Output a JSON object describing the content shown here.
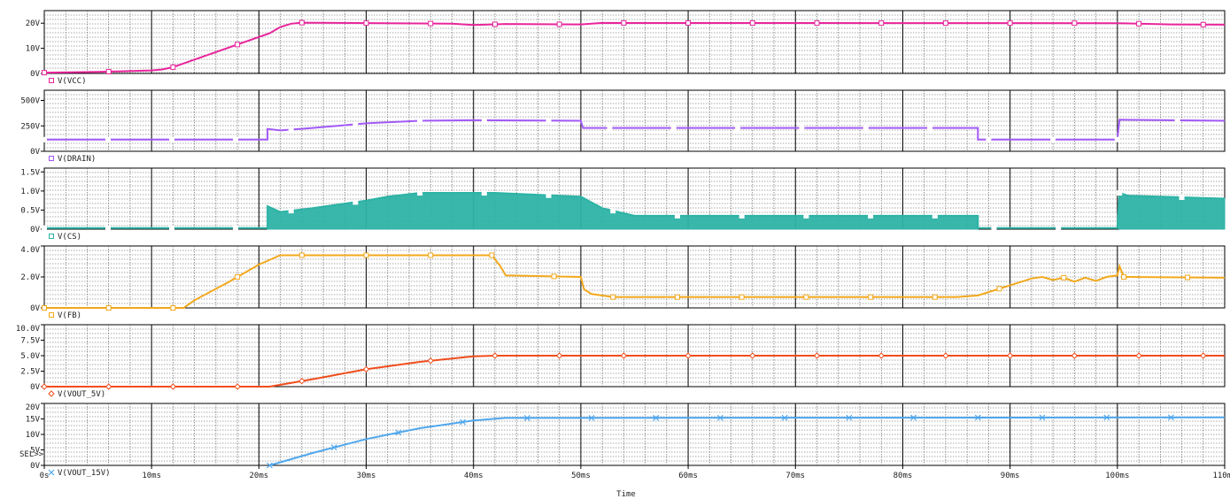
{
  "chart_data": {
    "type": "line",
    "x_axis": {
      "label": "Time",
      "unit": "ms",
      "range": [
        0,
        110
      ],
      "tick_labels": [
        "0s",
        "10ms",
        "20ms",
        "30ms",
        "40ms",
        "50ms",
        "60ms",
        "70ms",
        "80ms",
        "90ms",
        "100ms",
        "110ms"
      ]
    },
    "panels": [
      {
        "trace": "V(VCC)",
        "color": "#e8259c",
        "marker": "square",
        "fill": false,
        "y_range": [
          0,
          25
        ],
        "tick_values": [
          0,
          10,
          20
        ],
        "tick_labels": [
          "0V",
          "10V",
          "20V"
        ],
        "points": [
          [
            0,
            0.3
          ],
          [
            5,
            0.6
          ],
          [
            10,
            1.2
          ],
          [
            11,
            1.6
          ],
          [
            12,
            2.5
          ],
          [
            15,
            7
          ],
          [
            18,
            11.5
          ],
          [
            21,
            16
          ],
          [
            22,
            18.5
          ],
          [
            23,
            19.8
          ],
          [
            24,
            20.2
          ],
          [
            38,
            19.8
          ],
          [
            40,
            19.3
          ],
          [
            43,
            19.7
          ],
          [
            50,
            19.5
          ],
          [
            52,
            20.1
          ],
          [
            100,
            20
          ],
          [
            105,
            19.5
          ],
          [
            110,
            19.4
          ]
        ]
      },
      {
        "trace": "V(DRAIN)",
        "color": "#a259f7",
        "marker": "square",
        "fill": true,
        "y_range": [
          0,
          600
        ],
        "tick_values": [
          0,
          250,
          500
        ],
        "tick_labels": [
          "0V",
          "250V",
          "500V"
        ],
        "points": [
          [
            0,
            115
          ],
          [
            20.8,
            115
          ],
          [
            20.8,
            220
          ],
          [
            22,
            205
          ],
          [
            25,
            230
          ],
          [
            30,
            275
          ],
          [
            35,
            300
          ],
          [
            40,
            305
          ],
          [
            50,
            300
          ],
          [
            50.2,
            230
          ],
          [
            87,
            230
          ],
          [
            87,
            115
          ],
          [
            100,
            115
          ],
          [
            100.2,
            310
          ],
          [
            110,
            300
          ]
        ]
      },
      {
        "trace": "V(CS)",
        "color": "#2db3a5",
        "marker": "square",
        "fill": true,
        "y_range": [
          0,
          1.6
        ],
        "tick_values": [
          0,
          0.5,
          1.0,
          1.5
        ],
        "tick_labels": [
          "0V",
          "0.5V",
          "1.0V",
          "1.5V"
        ],
        "points": [
          [
            0,
            0.03
          ],
          [
            20.8,
            0.03
          ],
          [
            20.8,
            0.6
          ],
          [
            22,
            0.45
          ],
          [
            25,
            0.55
          ],
          [
            30,
            0.75
          ],
          [
            32,
            0.85
          ],
          [
            35,
            0.95
          ],
          [
            42,
            0.95
          ],
          [
            50,
            0.85
          ],
          [
            52,
            0.55
          ],
          [
            55,
            0.35
          ],
          [
            87,
            0.35
          ],
          [
            87,
            0.03
          ],
          [
            100,
            0.03
          ],
          [
            100.2,
            0.95
          ],
          [
            101,
            0.88
          ],
          [
            110,
            0.8
          ]
        ]
      },
      {
        "trace": "V(FB)",
        "color": "#f2a81d",
        "marker": "square",
        "fill": false,
        "y_range": [
          0,
          4
        ],
        "tick_values": [
          0,
          2,
          4
        ],
        "tick_labels": [
          "0V",
          "2.0V",
          "4.0V"
        ],
        "points": [
          [
            0,
            0
          ],
          [
            13,
            0
          ],
          [
            14,
            0.5
          ],
          [
            17,
            1.6
          ],
          [
            20,
            2.8
          ],
          [
            22,
            3.4
          ],
          [
            40,
            3.4
          ],
          [
            41.7,
            3.4
          ],
          [
            42.5,
            2.7
          ],
          [
            43,
            2.1
          ],
          [
            50,
            2.0
          ],
          [
            50.3,
            1.2
          ],
          [
            51,
            0.9
          ],
          [
            53,
            0.7
          ],
          [
            85,
            0.7
          ],
          [
            87,
            0.8
          ],
          [
            92,
            1.9
          ],
          [
            93,
            2.0
          ],
          [
            94,
            1.8
          ],
          [
            95,
            1.95
          ],
          [
            96,
            1.7
          ],
          [
            97,
            1.95
          ],
          [
            98,
            1.75
          ],
          [
            99,
            2.0
          ],
          [
            100,
            2.1
          ],
          [
            100.2,
            2.7
          ],
          [
            100.6,
            2.0
          ],
          [
            110,
            1.95
          ]
        ]
      },
      {
        "trace": "V(VOUT_5V)",
        "color": "#f04d1c",
        "marker": "diamond",
        "fill": false,
        "y_range": [
          0,
          10
        ],
        "tick_values": [
          0,
          2.5,
          5,
          7.5,
          10
        ],
        "tick_labels": [
          "0V",
          "2.5V",
          "5.0V",
          "7.5V",
          "10.0V"
        ],
        "points": [
          [
            0,
            0
          ],
          [
            21,
            0
          ],
          [
            25,
            1.2
          ],
          [
            30,
            2.8
          ],
          [
            35,
            4
          ],
          [
            40,
            4.9
          ],
          [
            42,
            5
          ],
          [
            110,
            5
          ]
        ]
      },
      {
        "trace": "V(VOUT_15V)",
        "color": "#4fa7ee",
        "marker": "x",
        "fill": false,
        "y_range": [
          0,
          20
        ],
        "tick_values": [
          0,
          5,
          10,
          15,
          20
        ],
        "tick_labels": [
          "0V",
          "5V",
          "10V",
          "15V",
          "20V"
        ],
        "points": [
          [
            21,
            0
          ],
          [
            25,
            4
          ],
          [
            30,
            8.5
          ],
          [
            35,
            12
          ],
          [
            40,
            14.5
          ],
          [
            43,
            15.3
          ],
          [
            110,
            15.5
          ]
        ]
      }
    ],
    "extra_label": "SEL>>",
    "grid": true,
    "legend": "below each panel"
  }
}
